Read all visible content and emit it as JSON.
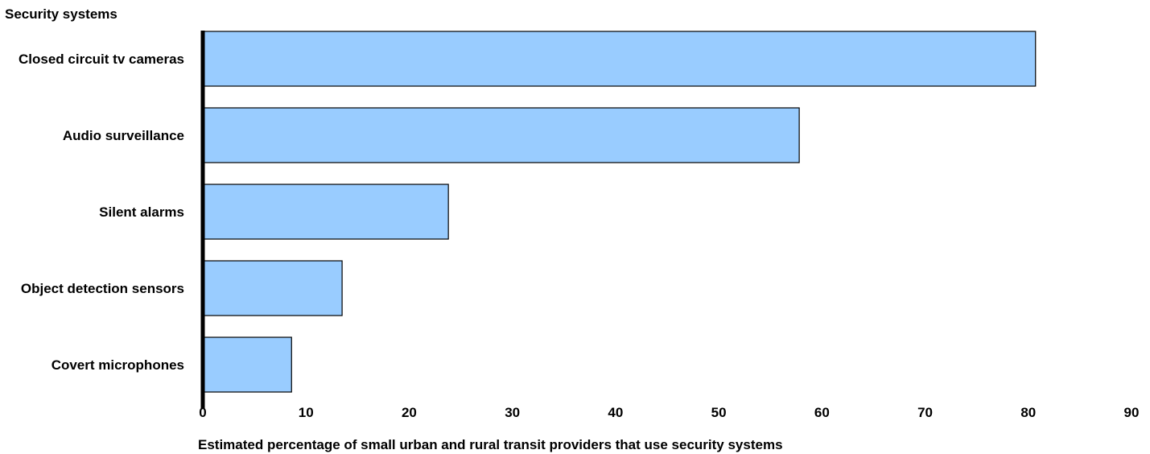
{
  "chart_data": {
    "type": "bar",
    "orientation": "horizontal",
    "ylabel": "Security systems",
    "xlabel": "Estimated percentage of small urban and rural transit providers that use security systems",
    "categories": [
      "Closed circuit tv cameras",
      "Audio surveillance",
      "Silent alarms",
      "Object detection sensors",
      "Covert microphones"
    ],
    "values": [
      80.7,
      57.8,
      23.8,
      13.5,
      8.6
    ],
    "xlim": [
      0,
      90
    ],
    "xticks": [
      "0",
      "10",
      "20",
      "30",
      "40",
      "50",
      "60",
      "70",
      "80",
      "90"
    ],
    "grid": false,
    "colors": {
      "bar_fill": "#99ccff",
      "bar_stroke": "#000000",
      "axis": "#000000"
    }
  }
}
